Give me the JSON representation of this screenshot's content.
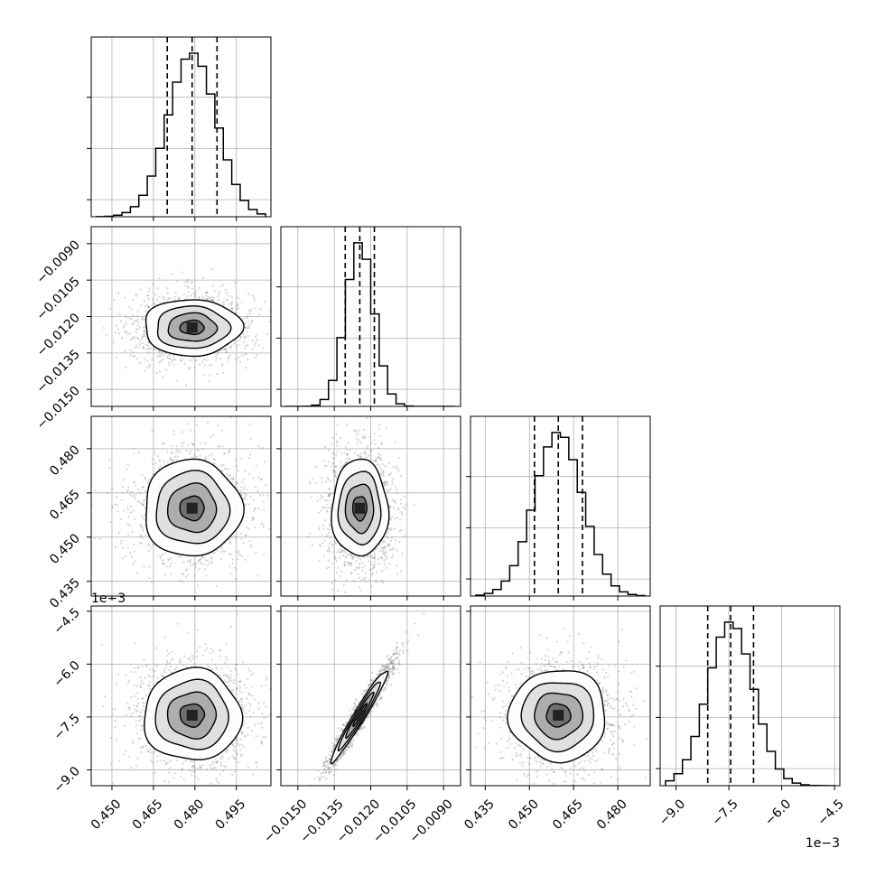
{
  "chart_data": {
    "type": "corner",
    "parameters": [
      {
        "range": [
          0.4425,
          0.5075
        ],
        "ticks": [
          0.45,
          0.465,
          0.48,
          0.495
        ],
        "tick_labels": [
          "0.450",
          "0.465",
          "0.480",
          "0.495"
        ],
        "quantiles": [
          0.47,
          0.479,
          0.488
        ],
        "mean": 0.479,
        "std": 0.0088,
        "offset_label": ""
      },
      {
        "range": [
          -0.0157,
          -0.0083
        ],
        "ticks": [
          -0.015,
          -0.0135,
          -0.012,
          -0.0105,
          -0.009
        ],
        "tick_labels": [
          "−0.0150",
          "−0.0135",
          "−0.0120",
          "−0.0105",
          "−0.0090"
        ],
        "quantiles": [
          -0.01305,
          -0.01245,
          -0.01185
        ],
        "mean": -0.01245,
        "std": 0.00058,
        "offset_label": ""
      },
      {
        "range": [
          0.43,
          0.491
        ],
        "ticks": [
          0.435,
          0.45,
          0.465,
          0.48
        ],
        "tick_labels": [
          "0.435",
          "0.450",
          "0.465",
          "0.480"
        ],
        "quantiles": [
          0.4517,
          0.4598,
          0.468
        ],
        "mean": 0.4598,
        "std": 0.0082,
        "offset_label": ""
      },
      {
        "range": [
          -9.45,
          -4.35
        ],
        "ticks": [
          -9.0,
          -7.5,
          -6.0,
          -4.5
        ],
        "tick_labels": [
          "−9.0",
          "−7.5",
          "−6.0",
          "−4.5"
        ],
        "quantiles": [
          -8.1,
          -7.45,
          -6.8
        ],
        "mean": -7.45,
        "std": 0.65,
        "offset_label": "1e−3"
      }
    ],
    "correlations": [
      [
        1,
        0,
        0,
        0
      ],
      [
        0,
        1,
        0,
        0.97
      ],
      [
        0,
        0,
        1,
        0
      ],
      [
        0,
        0.97,
        0,
        1
      ]
    ],
    "histogram_bins": 20,
    "scatter_points": 1500,
    "contour_levels_sigma": [
      0.5,
      1.0,
      1.5,
      2.0
    ],
    "grid": true,
    "colors": {
      "line": "#000000",
      "points": "#888888",
      "grid": "#b0b0b0"
    }
  }
}
